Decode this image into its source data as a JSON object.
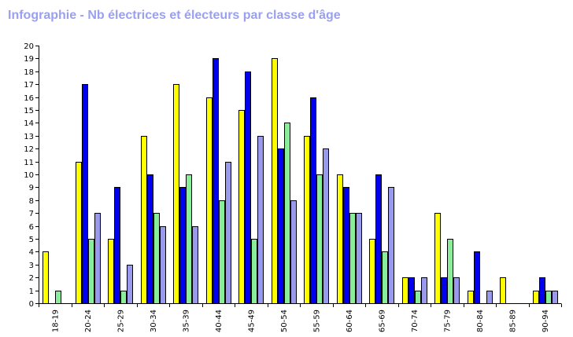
{
  "chart_data": {
    "type": "bar",
    "title": "Infographie - Nb électrices et électeurs par classe d'âge",
    "xlabel": "",
    "ylabel": "",
    "ylim": [
      0,
      20
    ],
    "yticks": [
      0,
      1,
      2,
      3,
      4,
      5,
      6,
      7,
      8,
      9,
      10,
      11,
      12,
      13,
      14,
      15,
      16,
      17,
      18,
      19,
      20
    ],
    "categories": [
      "18-19",
      "20-24",
      "25-29",
      "30-34",
      "35-39",
      "40-44",
      "45-49",
      "50-54",
      "55-59",
      "60-64",
      "65-69",
      "70-74",
      "75-79",
      "80-84",
      "85-89",
      "90-94"
    ],
    "series": [
      {
        "color": "#ffff00",
        "values": [
          4,
          11,
          5,
          13,
          17,
          16,
          15,
          19,
          13,
          10,
          5,
          2,
          7,
          1,
          2,
          1
        ]
      },
      {
        "color": "#0000ee",
        "values": [
          0,
          17,
          9,
          10,
          9,
          19,
          18,
          12,
          16,
          9,
          10,
          2,
          2,
          4,
          0,
          2
        ]
      },
      {
        "color": "#88ee99",
        "values": [
          1,
          5,
          1,
          7,
          10,
          8,
          5,
          14,
          10,
          7,
          4,
          1,
          5,
          0,
          0,
          1
        ]
      },
      {
        "color": "#9999ee",
        "values": [
          0,
          7,
          3,
          6,
          6,
          11,
          13,
          8,
          12,
          7,
          9,
          2,
          2,
          1,
          0,
          1
        ]
      }
    ],
    "grid": false,
    "legend": "none"
  }
}
